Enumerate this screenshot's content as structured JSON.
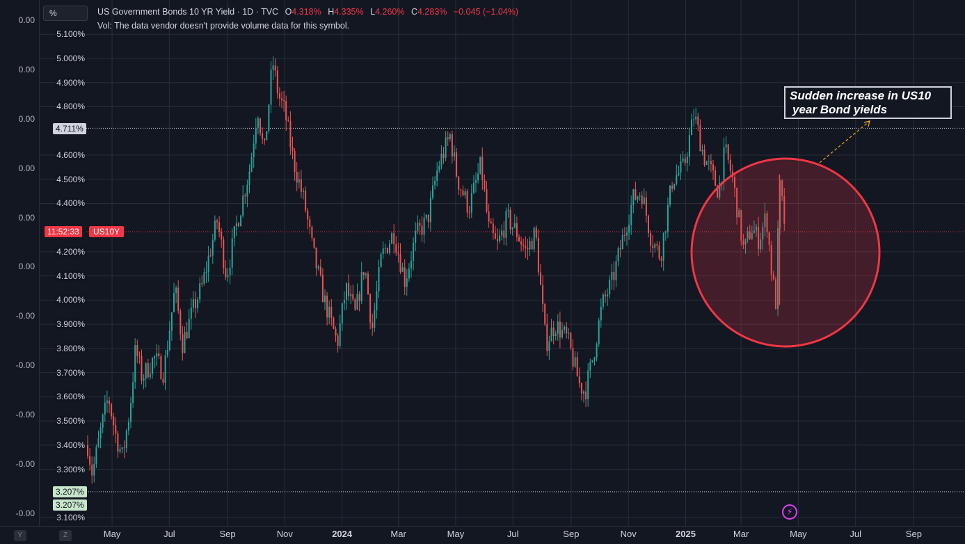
{
  "header": {
    "unit_button": "%",
    "symbol_title": "US Government Bonds 10 YR Yield · 1D · TVC",
    "ohlc": {
      "o_label": "O",
      "o_value": "4.318%",
      "h_label": "H",
      "h_value": "4.335%",
      "l_label": "L",
      "l_value": "4.260%",
      "c_label": "C",
      "c_value": "4.283%",
      "change": "−0.045 (−1.04%)"
    },
    "volume_note": "Vol: The data vendor doesn't provide volume data for this symbol."
  },
  "left_axis_labels": [
    "0.00",
    "0.00",
    "0.00",
    "0.00",
    "0.00",
    "0.00",
    "-0.00",
    "-0.00",
    "-0.00",
    "-0.00",
    "-0.00"
  ],
  "price_tags": {
    "high": "4.711%",
    "low_a": "3.207%",
    "low_b": "3.207%",
    "countdown": "11:52:33",
    "symbol": "US10Y"
  },
  "annotation": {
    "line1": "Sudden increase in US10",
    "line2": "year Bond yields"
  },
  "bottom_buttons": {
    "y": "Y",
    "z": "Z"
  },
  "colors": {
    "background": "#131722",
    "up": "#26a69a",
    "down": "#ef5350",
    "highlight_circle": "#f23645",
    "annotation_arrow": "#f5a623"
  },
  "icons": {
    "alert": "lightning-icon"
  },
  "chart_data": {
    "type": "candlestick",
    "y_ticks": [
      "5.100%",
      "5.000%",
      "4.900%",
      "4.800%",
      "4.600%",
      "4.500%",
      "4.400%",
      "4.200%",
      "4.100%",
      "4.000%",
      "3.900%",
      "3.800%",
      "3.700%",
      "3.600%",
      "3.500%",
      "3.400%",
      "3.300%",
      "3.100%"
    ],
    "x_ticks": [
      "May",
      "Jul",
      "Sep",
      "Nov",
      "2024",
      "Mar",
      "May",
      "Jul",
      "Sep",
      "Nov",
      "2025",
      "Mar",
      "May",
      "Jul",
      "Sep"
    ],
    "x_tick_bold": [
      false,
      false,
      false,
      false,
      true,
      false,
      false,
      false,
      false,
      false,
      true,
      false,
      false,
      false,
      false
    ],
    "ylim": [
      3.08,
      5.12
    ],
    "xlim": [
      "2023-04-05",
      "2025-10-10"
    ],
    "marked_levels": [
      4.711,
      3.207
    ],
    "last_price": 4.283,
    "grid": true,
    "path": [
      [
        "2023-04-05",
        3.4
      ],
      [
        "2023-04-10",
        3.28
      ],
      [
        "2023-04-20",
        3.48
      ],
      [
        "2023-04-27",
        3.6
      ],
      [
        "2023-05-05",
        3.44
      ],
      [
        "2023-05-12",
        3.35
      ],
      [
        "2023-05-20",
        3.55
      ],
      [
        "2023-05-26",
        3.8
      ],
      [
        "2023-06-02",
        3.68
      ],
      [
        "2023-06-15",
        3.76
      ],
      [
        "2023-06-25",
        3.7
      ],
      [
        "2023-07-07",
        4.05
      ],
      [
        "2023-07-15",
        3.82
      ],
      [
        "2023-07-28",
        3.98
      ],
      [
        "2023-08-05",
        4.06
      ],
      [
        "2023-08-21",
        4.33
      ],
      [
        "2023-08-31",
        4.1
      ],
      [
        "2023-09-10",
        4.3
      ],
      [
        "2023-09-25",
        4.55
      ],
      [
        "2023-10-03",
        4.8
      ],
      [
        "2023-10-10",
        4.6
      ],
      [
        "2023-10-19",
        4.99
      ],
      [
        "2023-10-25",
        4.85
      ],
      [
        "2023-11-01",
        4.78
      ],
      [
        "2023-11-10",
        4.58
      ],
      [
        "2023-11-22",
        4.4
      ],
      [
        "2023-12-01",
        4.2
      ],
      [
        "2023-12-13",
        4.0
      ],
      [
        "2023-12-27",
        3.82
      ],
      [
        "2024-01-05",
        4.05
      ],
      [
        "2024-01-15",
        3.94
      ],
      [
        "2024-01-25",
        4.15
      ],
      [
        "2024-02-02",
        3.88
      ],
      [
        "2024-02-12",
        4.18
      ],
      [
        "2024-02-25",
        4.28
      ],
      [
        "2024-03-08",
        4.08
      ],
      [
        "2024-03-20",
        4.27
      ],
      [
        "2024-04-01",
        4.33
      ],
      [
        "2024-04-12",
        4.55
      ],
      [
        "2024-04-25",
        4.68
      ],
      [
        "2024-05-03",
        4.5
      ],
      [
        "2024-05-15",
        4.38
      ],
      [
        "2024-05-28",
        4.56
      ],
      [
        "2024-06-05",
        4.3
      ],
      [
        "2024-06-14",
        4.22
      ],
      [
        "2024-06-25",
        4.34
      ],
      [
        "2024-07-05",
        4.28
      ],
      [
        "2024-07-15",
        4.2
      ],
      [
        "2024-07-25",
        4.28
      ],
      [
        "2024-08-05",
        3.82
      ],
      [
        "2024-08-15",
        3.9
      ],
      [
        "2024-08-28",
        3.84
      ],
      [
        "2024-09-10",
        3.65
      ],
      [
        "2024-09-16",
        3.62
      ],
      [
        "2024-09-25",
        3.78
      ],
      [
        "2024-10-04",
        3.98
      ],
      [
        "2024-10-15",
        4.08
      ],
      [
        "2024-10-25",
        4.24
      ],
      [
        "2024-11-06",
        4.42
      ],
      [
        "2024-11-15",
        4.45
      ],
      [
        "2024-11-25",
        4.26
      ],
      [
        "2024-12-05",
        4.18
      ],
      [
        "2024-12-18",
        4.5
      ],
      [
        "2024-12-30",
        4.55
      ],
      [
        "2025-01-10",
        4.77
      ],
      [
        "2025-01-20",
        4.6
      ],
      [
        "2025-01-28",
        4.53
      ],
      [
        "2025-02-05",
        4.45
      ],
      [
        "2025-02-12",
        4.62
      ],
      [
        "2025-02-20",
        4.5
      ],
      [
        "2025-03-04",
        4.2
      ],
      [
        "2025-03-12",
        4.3
      ],
      [
        "2025-03-20",
        4.25
      ],
      [
        "2025-03-28",
        4.35
      ],
      [
        "2025-04-03",
        4.1
      ],
      [
        "2025-04-07",
        3.99
      ],
      [
        "2025-04-11",
        4.48
      ],
      [
        "2025-04-16",
        4.33
      ],
      [
        "2025-04-18",
        4.283
      ]
    ],
    "annotations": [
      {
        "type": "circle",
        "x": "2025-04-01",
        "y": 4.24
      },
      {
        "type": "text",
        "text": "Sudden increase in US10 year Bond yields"
      }
    ]
  }
}
